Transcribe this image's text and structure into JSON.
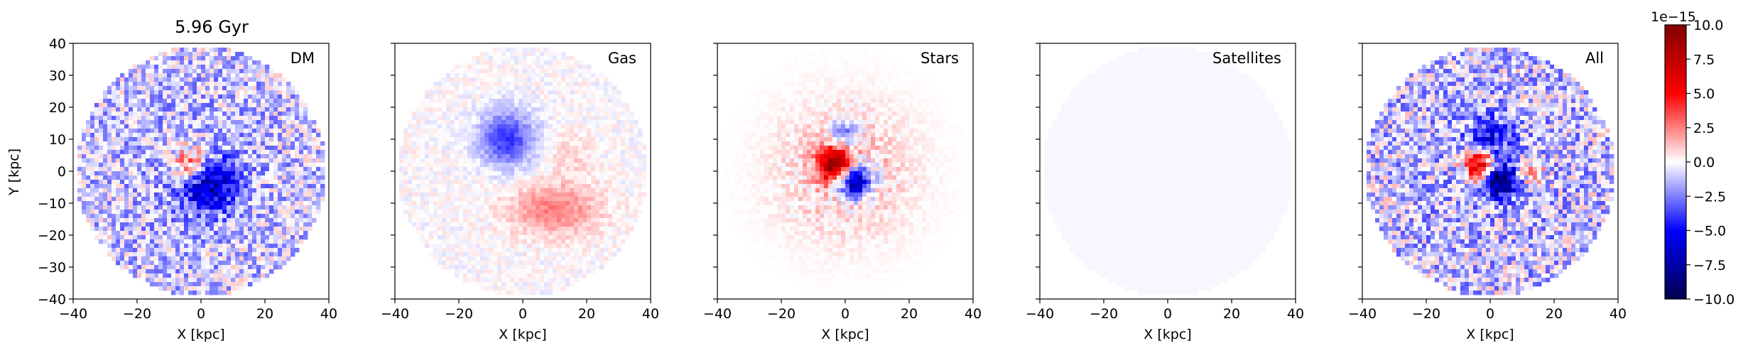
{
  "figure": {
    "title": "5.96 Gyr",
    "ylabel": "Y [kpc]",
    "xlabel": "X [kpc]"
  },
  "chart_data": [
    {
      "type": "heatmap",
      "panel_label": "DM",
      "xlabel": "X [kpc]",
      "ylabel": "Y [kpc]",
      "xlim": [
        -40,
        40
      ],
      "ylim": [
        -40,
        40
      ],
      "xticks": [
        "−40",
        "−20",
        "0",
        "20",
        "40"
      ],
      "yticks": [
        "40",
        "30",
        "20",
        "10",
        "0",
        "−10",
        "−20",
        "−30",
        "−40"
      ],
      "colormap": "seismic",
      "field_description_values": {
        "disk_radius_kpc": 39,
        "background_level": -1.5,
        "center_blob": {
          "x": -3,
          "y": 2,
          "value": 6
        },
        "center_blob2": {
          "x": 2,
          "y": -4,
          "value": -6
        },
        "noise": 2.2
      }
    },
    {
      "type": "heatmap",
      "panel_label": "Gas",
      "xlabel": "X [kpc]",
      "xlim": [
        -40,
        40
      ],
      "ylim": [
        -40,
        40
      ],
      "xticks": [
        "−40",
        "−20",
        "0",
        "20",
        "40"
      ],
      "colormap": "seismic",
      "field_description_values": {
        "disk_radius_kpc": 39,
        "blue_blob": {
          "x": -5,
          "y": 10,
          "value": -4
        },
        "red_arm": {
          "x": 10,
          "y": -12,
          "value": 2.5
        },
        "noise": 0.6
      }
    },
    {
      "type": "heatmap",
      "panel_label": "Stars",
      "xlabel": "X [kpc]",
      "xlim": [
        -40,
        40
      ],
      "ylim": [
        -40,
        40
      ],
      "xticks": [
        "−40",
        "−20",
        "0",
        "20",
        "40"
      ],
      "colormap": "seismic",
      "field_description_values": {
        "disk_radius_kpc": 39,
        "red_core": {
          "x": -3,
          "y": 2,
          "value": 9
        },
        "blue_core": {
          "x": 3,
          "y": -3,
          "value": -9
        },
        "noise": 2.0
      }
    },
    {
      "type": "heatmap",
      "panel_label": "Satellites",
      "xlabel": "X [kpc]",
      "xlim": [
        -40,
        40
      ],
      "ylim": [
        -40,
        40
      ],
      "xticks": [
        "−40",
        "−20",
        "0",
        "20",
        "40"
      ],
      "colormap": "seismic",
      "field_description_values": {
        "disk_radius_kpc": 39,
        "background_level": -0.15
      }
    },
    {
      "type": "heatmap",
      "panel_label": "All",
      "xlabel": "X [kpc]",
      "xlim": [
        -40,
        40
      ],
      "ylim": [
        -40,
        40
      ],
      "xticks": [
        "−40",
        "−20",
        "0",
        "20",
        "40"
      ],
      "colormap": "seismic",
      "field_description_values": {
        "disk_radius_kpc": 39,
        "background_level": -1.5,
        "red_core": {
          "x": -3,
          "y": 2,
          "value": 9
        },
        "blue_core": {
          "x": 3,
          "y": -3,
          "value": -9
        },
        "blue_ring": {
          "x": 0,
          "y": 10,
          "value": -4
        },
        "red_side": {
          "x": 13,
          "y": 0,
          "value": 3
        },
        "noise": 2.5
      }
    }
  ],
  "colorbar": {
    "scale_label": "1e−15",
    "range": [
      -10,
      10
    ],
    "ticks": [
      "10.0",
      "7.5",
      "5.0",
      "2.5",
      "0.0",
      "−2.5",
      "−5.0",
      "−7.5",
      "−10.0"
    ]
  }
}
